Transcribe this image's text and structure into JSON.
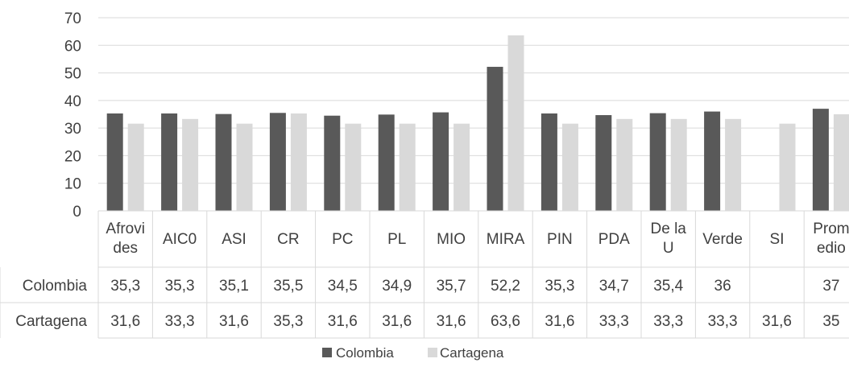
{
  "chart_data": {
    "type": "bar",
    "categories": [
      [
        "Afrovi",
        "des"
      ],
      [
        "AIC0"
      ],
      [
        "ASI"
      ],
      [
        "CR"
      ],
      [
        "PC"
      ],
      [
        "PL"
      ],
      [
        "MIO"
      ],
      [
        "MIRA"
      ],
      [
        "PIN"
      ],
      [
        "PDA"
      ],
      [
        "De la",
        "U"
      ],
      [
        "Verde"
      ],
      [
        "SI"
      ],
      [
        "Prom",
        "edio"
      ]
    ],
    "series": [
      {
        "name": "Colombia",
        "color": "#595959",
        "values": [
          35.3,
          35.3,
          35.1,
          35.5,
          34.5,
          34.9,
          35.7,
          52.2,
          35.3,
          34.7,
          35.4,
          36,
          null,
          37
        ],
        "labels": [
          "35,3",
          "35,3",
          "35,1",
          "35,5",
          "34,5",
          "34,9",
          "35,7",
          "52,2",
          "35,3",
          "34,7",
          "35,4",
          "36",
          "",
          "37"
        ]
      },
      {
        "name": "Cartagena",
        "color": "#d9d9d9",
        "values": [
          31.6,
          33.3,
          31.6,
          35.3,
          31.6,
          31.6,
          31.6,
          63.6,
          31.6,
          33.3,
          33.3,
          33.3,
          31.6,
          35
        ],
        "labels": [
          "31,6",
          "33,3",
          "31,6",
          "35,3",
          "31,6",
          "31,6",
          "31,6",
          "63,6",
          "31,6",
          "33,3",
          "33,3",
          "33,3",
          "31,6",
          "35"
        ]
      }
    ],
    "yticks": [
      "0",
      "10",
      "20",
      "30",
      "40",
      "50",
      "60",
      "70"
    ],
    "ylim": [
      0,
      70
    ],
    "grid": true,
    "legend": "bottom",
    "data_table": true
  }
}
